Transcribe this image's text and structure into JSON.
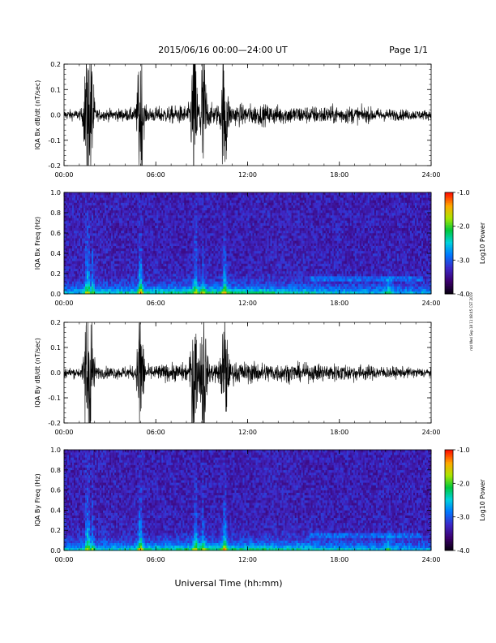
{
  "header": {
    "title": "2015/06/16  00:00—24:00 UT",
    "page": "Page 1/1"
  },
  "footer": {
    "xlabel": "Universal Time (hh:mm)",
    "stamp": "rdd Wed Sep 18 11:08:45 CST 2019"
  },
  "chart_data": [
    {
      "type": "line",
      "ylabel": "IQA Bx dB/dt (nT/sec)",
      "ylim": [
        -0.2,
        0.2
      ],
      "yticks": [
        "0.2",
        "0.1",
        "0.0",
        "-0.1",
        "-0.2"
      ],
      "xlim": [
        0,
        24
      ],
      "xticks": [
        "00:00",
        "06:00",
        "12:00",
        "18:00",
        "24:00"
      ],
      "bursts": [
        {
          "t": 1.5,
          "amp": 0.3
        },
        {
          "t": 1.75,
          "amp": 0.3
        },
        {
          "t": 5.0,
          "amp": 0.3
        },
        {
          "t": 8.5,
          "amp": 0.3
        },
        {
          "t": 9.1,
          "amp": 0.3
        },
        {
          "t": 10.5,
          "amp": 0.25
        }
      ]
    },
    {
      "type": "heatmap",
      "ylabel": "IQA Bx Freq (Hz)",
      "ylim": [
        0.0,
        1.0
      ],
      "yticks": [
        "1.0",
        "0.8",
        "0.6",
        "0.4",
        "0.2",
        "0.0"
      ],
      "xlim": [
        0,
        24
      ],
      "xticks": [
        "00:00",
        "06:00",
        "12:00",
        "18:00",
        "24:00"
      ],
      "colorbar": {
        "label": "Log10 Power",
        "range": [
          -4.0,
          -1.0
        ],
        "ticks": [
          "-1.0",
          "-2.0",
          "-3.0",
          "-4.0"
        ]
      }
    },
    {
      "type": "line",
      "ylabel": "IQA By dB/dt (nT/sec)",
      "ylim": [
        -0.2,
        0.2
      ],
      "yticks": [
        "0.2",
        "0.1",
        "0.0",
        "-0.1",
        "-0.2"
      ],
      "xlim": [
        0,
        24
      ],
      "xticks": [
        "00:00",
        "06:00",
        "12:00",
        "18:00",
        "24:00"
      ],
      "bursts": [
        {
          "t": 1.5,
          "amp": 0.3
        },
        {
          "t": 1.75,
          "amp": 0.3
        },
        {
          "t": 5.0,
          "amp": 0.3
        },
        {
          "t": 8.5,
          "amp": 0.3
        },
        {
          "t": 9.1,
          "amp": 0.3
        },
        {
          "t": 10.5,
          "amp": 0.25
        }
      ]
    },
    {
      "type": "heatmap",
      "ylabel": "IQA By Freq (Hz)",
      "ylim": [
        0.0,
        1.0
      ],
      "yticks": [
        "1.0",
        "0.8",
        "0.6",
        "0.4",
        "0.2",
        "0.0"
      ],
      "xlim": [
        0,
        24
      ],
      "xticks": [
        "00:00",
        "06:00",
        "12:00",
        "18:00",
        "24:00"
      ],
      "colorbar": {
        "label": "Log10 Power",
        "range": [
          -4.0,
          -1.0
        ],
        "ticks": [
          "-1.0",
          "-2.0",
          "-3.0",
          "-4.0"
        ]
      }
    }
  ]
}
